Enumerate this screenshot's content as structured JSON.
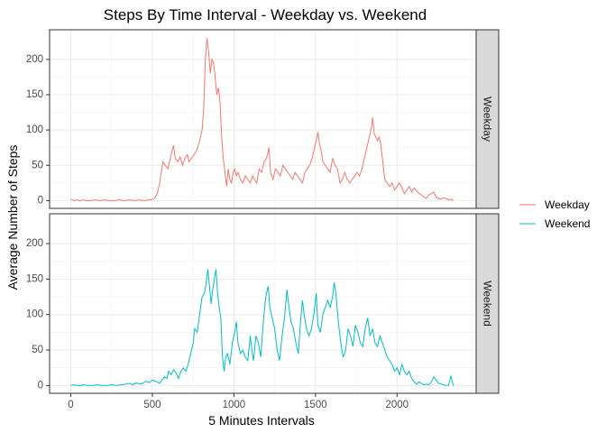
{
  "chart_data": {
    "type": "line",
    "title": "Steps By Time Interval - Weekday vs. Weekend",
    "xlabel": "5 Minutes Intervals",
    "ylabel": "Average Number of Steps",
    "xlim": [
      -130,
      2485
    ],
    "ylim": [
      -11,
      242
    ],
    "x_ticks": [
      0,
      500,
      1000,
      1500,
      2000
    ],
    "y_ticks": [
      0,
      50,
      100,
      150,
      200
    ],
    "grid": true,
    "legend_position": "right",
    "facets": [
      {
        "label": "Weekday",
        "series": "Weekday"
      },
      {
        "label": "Weekend",
        "series": "Weekend"
      }
    ],
    "series": [
      {
        "name": "Weekday",
        "color": "#F8766D",
        "points": [
          [
            0,
            2
          ],
          [
            20,
            0
          ],
          [
            40,
            1
          ],
          [
            60,
            0
          ],
          [
            80,
            1
          ],
          [
            100,
            0
          ],
          [
            120,
            0
          ],
          [
            150,
            1
          ],
          [
            180,
            0
          ],
          [
            210,
            1
          ],
          [
            240,
            0
          ],
          [
            270,
            0
          ],
          [
            300,
            1
          ],
          [
            330,
            0
          ],
          [
            360,
            1
          ],
          [
            390,
            0
          ],
          [
            420,
            1
          ],
          [
            450,
            0
          ],
          [
            480,
            1
          ],
          [
            500,
            2
          ],
          [
            515,
            4
          ],
          [
            530,
            10
          ],
          [
            545,
            25
          ],
          [
            555,
            40
          ],
          [
            565,
            55
          ],
          [
            580,
            50
          ],
          [
            595,
            45
          ],
          [
            610,
            60
          ],
          [
            620,
            70
          ],
          [
            630,
            78
          ],
          [
            640,
            60
          ],
          [
            655,
            55
          ],
          [
            670,
            62
          ],
          [
            685,
            50
          ],
          [
            700,
            60
          ],
          [
            715,
            65
          ],
          [
            725,
            55
          ],
          [
            740,
            60
          ],
          [
            755,
            65
          ],
          [
            770,
            70
          ],
          [
            790,
            85
          ],
          [
            805,
            100
          ],
          [
            815,
            130
          ],
          [
            825,
            200
          ],
          [
            835,
            230
          ],
          [
            845,
            210
          ],
          [
            855,
            180
          ],
          [
            865,
            200
          ],
          [
            875,
            195
          ],
          [
            885,
            175
          ],
          [
            895,
            150
          ],
          [
            905,
            160
          ],
          [
            915,
            140
          ],
          [
            925,
            90
          ],
          [
            935,
            60
          ],
          [
            945,
            40
          ],
          [
            955,
            20
          ],
          [
            965,
            45
          ],
          [
            975,
            30
          ],
          [
            985,
            25
          ],
          [
            995,
            40
          ],
          [
            1005,
            45
          ],
          [
            1015,
            35
          ],
          [
            1025,
            40
          ],
          [
            1040,
            30
          ],
          [
            1055,
            25
          ],
          [
            1070,
            35
          ],
          [
            1085,
            30
          ],
          [
            1100,
            25
          ],
          [
            1115,
            35
          ],
          [
            1125,
            30
          ],
          [
            1140,
            25
          ],
          [
            1155,
            45
          ],
          [
            1170,
            40
          ],
          [
            1185,
            55
          ],
          [
            1200,
            60
          ],
          [
            1215,
            75
          ],
          [
            1225,
            40
          ],
          [
            1240,
            30
          ],
          [
            1255,
            45
          ],
          [
            1270,
            40
          ],
          [
            1285,
            35
          ],
          [
            1300,
            50
          ],
          [
            1315,
            45
          ],
          [
            1330,
            40
          ],
          [
            1345,
            35
          ],
          [
            1360,
            30
          ],
          [
            1375,
            40
          ],
          [
            1390,
            35
          ],
          [
            1405,
            30
          ],
          [
            1420,
            25
          ],
          [
            1435,
            40
          ],
          [
            1450,
            45
          ],
          [
            1465,
            50
          ],
          [
            1480,
            60
          ],
          [
            1495,
            75
          ],
          [
            1505,
            85
          ],
          [
            1515,
            97
          ],
          [
            1525,
            80
          ],
          [
            1535,
            70
          ],
          [
            1545,
            55
          ],
          [
            1560,
            50
          ],
          [
            1575,
            45
          ],
          [
            1590,
            40
          ],
          [
            1605,
            60
          ],
          [
            1620,
            50
          ],
          [
            1635,
            45
          ],
          [
            1650,
            25
          ],
          [
            1665,
            30
          ],
          [
            1680,
            40
          ],
          [
            1695,
            30
          ],
          [
            1710,
            25
          ],
          [
            1725,
            30
          ],
          [
            1740,
            35
          ],
          [
            1755,
            40
          ],
          [
            1770,
            35
          ],
          [
            1785,
            45
          ],
          [
            1800,
            60
          ],
          [
            1815,
            75
          ],
          [
            1830,
            90
          ],
          [
            1845,
            105
          ],
          [
            1850,
            118
          ],
          [
            1860,
            95
          ],
          [
            1870,
            90
          ],
          [
            1880,
            85
          ],
          [
            1890,
            90
          ],
          [
            1900,
            80
          ],
          [
            1910,
            60
          ],
          [
            1925,
            30
          ],
          [
            1940,
            25
          ],
          [
            1955,
            20
          ],
          [
            1970,
            25
          ],
          [
            1985,
            15
          ],
          [
            2000,
            20
          ],
          [
            2015,
            25
          ],
          [
            2030,
            18
          ],
          [
            2045,
            10
          ],
          [
            2060,
            15
          ],
          [
            2075,
            20
          ],
          [
            2090,
            12
          ],
          [
            2105,
            18
          ],
          [
            2120,
            14
          ],
          [
            2135,
            10
          ],
          [
            2150,
            8
          ],
          [
            2165,
            5
          ],
          [
            2180,
            3
          ],
          [
            2195,
            8
          ],
          [
            2210,
            10
          ],
          [
            2225,
            12
          ],
          [
            2240,
            5
          ],
          [
            2255,
            3
          ],
          [
            2270,
            2
          ],
          [
            2285,
            4
          ],
          [
            2300,
            3
          ],
          [
            2315,
            1
          ],
          [
            2330,
            2
          ],
          [
            2345,
            0
          ]
        ]
      },
      {
        "name": "Weekend",
        "color": "#00BFC4",
        "points": [
          [
            0,
            0
          ],
          [
            20,
            1
          ],
          [
            40,
            0
          ],
          [
            60,
            0
          ],
          [
            80,
            1
          ],
          [
            100,
            0
          ],
          [
            130,
            0
          ],
          [
            160,
            1
          ],
          [
            190,
            0
          ],
          [
            220,
            0
          ],
          [
            250,
            1
          ],
          [
            280,
            0
          ],
          [
            310,
            1
          ],
          [
            340,
            2
          ],
          [
            360,
            3
          ],
          [
            380,
            1
          ],
          [
            400,
            4
          ],
          [
            420,
            2
          ],
          [
            440,
            3
          ],
          [
            460,
            6
          ],
          [
            480,
            4
          ],
          [
            500,
            8
          ],
          [
            515,
            6
          ],
          [
            530,
            5
          ],
          [
            545,
            3
          ],
          [
            560,
            8
          ],
          [
            575,
            12
          ],
          [
            590,
            10
          ],
          [
            600,
            20
          ],
          [
            615,
            15
          ],
          [
            630,
            22
          ],
          [
            645,
            18
          ],
          [
            660,
            10
          ],
          [
            675,
            20
          ],
          [
            690,
            25
          ],
          [
            705,
            20
          ],
          [
            720,
            30
          ],
          [
            735,
            45
          ],
          [
            750,
            60
          ],
          [
            760,
            80
          ],
          [
            775,
            75
          ],
          [
            790,
            100
          ],
          [
            805,
            125
          ],
          [
            820,
            130
          ],
          [
            830,
            145
          ],
          [
            840,
            164
          ],
          [
            850,
            140
          ],
          [
            860,
            115
          ],
          [
            870,
            135
          ],
          [
            880,
            150
          ],
          [
            890,
            164
          ],
          [
            900,
            130
          ],
          [
            910,
            110
          ],
          [
            920,
            95
          ],
          [
            930,
            40
          ],
          [
            940,
            20
          ],
          [
            950,
            40
          ],
          [
            960,
            45
          ],
          [
            975,
            30
          ],
          [
            990,
            60
          ],
          [
            1005,
            75
          ],
          [
            1015,
            90
          ],
          [
            1025,
            60
          ],
          [
            1040,
            45
          ],
          [
            1055,
            50
          ],
          [
            1070,
            40
          ],
          [
            1085,
            35
          ],
          [
            1100,
            70
          ],
          [
            1110,
            50
          ],
          [
            1120,
            35
          ],
          [
            1135,
            70
          ],
          [
            1150,
            60
          ],
          [
            1165,
            40
          ],
          [
            1180,
            90
          ],
          [
            1195,
            125
          ],
          [
            1210,
            140
          ],
          [
            1220,
            110
          ],
          [
            1235,
            95
          ],
          [
            1250,
            80
          ],
          [
            1265,
            50
          ],
          [
            1280,
            35
          ],
          [
            1295,
            70
          ],
          [
            1310,
            95
          ],
          [
            1325,
            135
          ],
          [
            1335,
            115
          ],
          [
            1350,
            90
          ],
          [
            1365,
            80
          ],
          [
            1380,
            60
          ],
          [
            1395,
            45
          ],
          [
            1410,
            95
          ],
          [
            1420,
            120
          ],
          [
            1430,
            100
          ],
          [
            1445,
            80
          ],
          [
            1460,
            70
          ],
          [
            1475,
            80
          ],
          [
            1490,
            100
          ],
          [
            1505,
            130
          ],
          [
            1515,
            85
          ],
          [
            1530,
            75
          ],
          [
            1545,
            100
          ],
          [
            1560,
            110
          ],
          [
            1575,
            120
          ],
          [
            1590,
            110
          ],
          [
            1605,
            125
          ],
          [
            1615,
            145
          ],
          [
            1625,
            130
          ],
          [
            1640,
            90
          ],
          [
            1655,
            60
          ],
          [
            1670,
            40
          ],
          [
            1685,
            50
          ],
          [
            1700,
            80
          ],
          [
            1715,
            70
          ],
          [
            1730,
            55
          ],
          [
            1745,
            85
          ],
          [
            1760,
            75
          ],
          [
            1775,
            60
          ],
          [
            1790,
            55
          ],
          [
            1805,
            80
          ],
          [
            1820,
            95
          ],
          [
            1835,
            70
          ],
          [
            1850,
            80
          ],
          [
            1865,
            60
          ],
          [
            1880,
            55
          ],
          [
            1895,
            70
          ],
          [
            1910,
            60
          ],
          [
            1925,
            50
          ],
          [
            1940,
            40
          ],
          [
            1955,
            35
          ],
          [
            1970,
            30
          ],
          [
            1985,
            20
          ],
          [
            2000,
            25
          ],
          [
            2015,
            15
          ],
          [
            2030,
            30
          ],
          [
            2045,
            20
          ],
          [
            2060,
            15
          ],
          [
            2075,
            20
          ],
          [
            2090,
            10
          ],
          [
            2105,
            5
          ],
          [
            2120,
            2
          ],
          [
            2135,
            5
          ],
          [
            2150,
            3
          ],
          [
            2165,
            1
          ],
          [
            2180,
            2
          ],
          [
            2195,
            1
          ],
          [
            2210,
            5
          ],
          [
            2225,
            12
          ],
          [
            2240,
            8
          ],
          [
            2255,
            3
          ],
          [
            2270,
            2
          ],
          [
            2285,
            1
          ],
          [
            2300,
            0
          ],
          [
            2315,
            0
          ],
          [
            2330,
            13
          ],
          [
            2345,
            0
          ]
        ]
      }
    ]
  }
}
